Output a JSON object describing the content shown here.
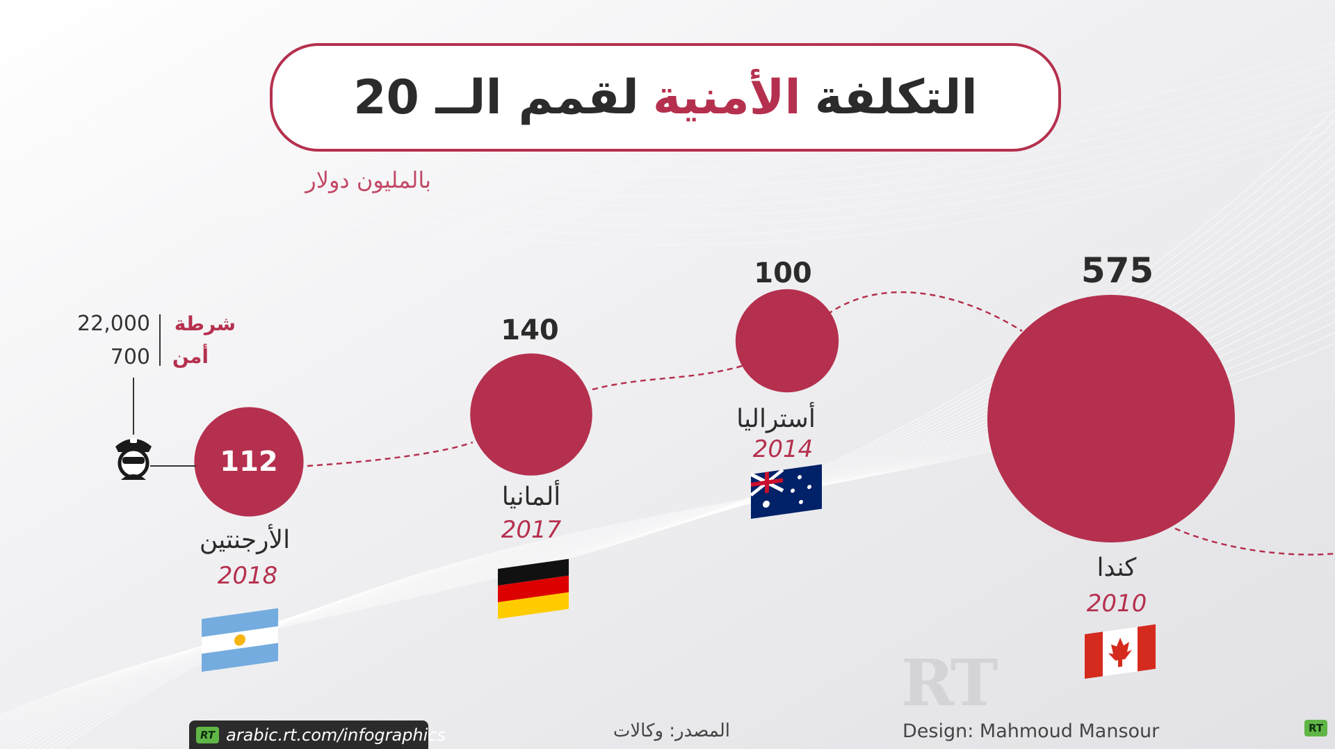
{
  "title": {
    "part1": "التكلفة",
    "part2": "الأمنية",
    "part3": "لقمم الــ 20"
  },
  "subtitle": "بالمليون دولار",
  "personnel": {
    "police_label": "شرطة",
    "police_value": "22,000",
    "security_label": "أمن",
    "security_value": "700",
    "icon": "police-officer-icon"
  },
  "chart_data": {
    "type": "bubble",
    "title": "التكلفة الأمنية لقمم الــ 20",
    "unit": "بالمليون دولار",
    "points": [
      {
        "country": "الأرجنتين",
        "year": "2018",
        "value": 112,
        "flag": "argentina-flag-icon"
      },
      {
        "country": "ألمانيا",
        "year": "2017",
        "value": 140,
        "flag": "germany-flag-icon"
      },
      {
        "country": "أستراليا",
        "year": "2014",
        "value": 100,
        "flag": "australia-flag-icon"
      },
      {
        "country": "كندا",
        "year": "2010",
        "value": 575,
        "flag": "canada-flag-icon"
      }
    ]
  },
  "footer": {
    "url": "arabic.rt.com/infographics",
    "source": "المصدر: وكالات",
    "design": "Design: Mahmoud Mansour",
    "rt_badge": "RT",
    "watermark": "RT"
  },
  "colors": {
    "accent": "#b5304e",
    "text": "#2b2b2b",
    "footer_bg": "#2b2b2b",
    "rt_green": "#5fb646"
  }
}
